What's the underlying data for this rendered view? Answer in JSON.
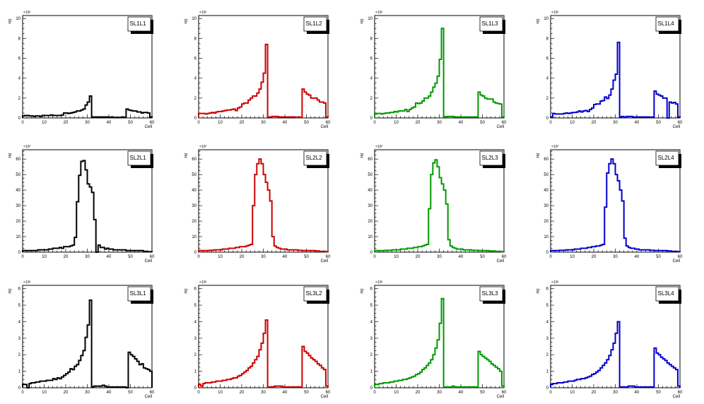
{
  "canvas": {
    "background": "#ffffff"
  },
  "chart_data": [
    {
      "type": "bar",
      "style": "step-histogram",
      "title": "SL1L1",
      "xlabel": "Cell",
      "ylabel": "Hz",
      "y_multiplier": "×10³",
      "color": "#000000",
      "xlim": [
        0,
        60
      ],
      "ylim": [
        0,
        10.3
      ],
      "x_ticks": [
        "0",
        "10",
        "20",
        "30",
        "40",
        "50",
        "60"
      ],
      "y_ticks": [
        "0",
        "2",
        "4",
        "6",
        "8",
        "10"
      ],
      "values": [
        0.2,
        0.25,
        0.25,
        0.2,
        0.2,
        0.15,
        0.2,
        0.2,
        0.15,
        0.25,
        0.25,
        0.25,
        0.25,
        0.3,
        0.25,
        0.25,
        0.25,
        0.25,
        0.3,
        0.5,
        0.5,
        0.45,
        0.5,
        0.55,
        0.6,
        0.7,
        0.7,
        0.8,
        0.9,
        1.3,
        1.6,
        2.2,
        0.1,
        0.1,
        0.1,
        0.1,
        0.1,
        0.1,
        0.1,
        0.1,
        0.05,
        0.1,
        0.05,
        0.05,
        0.05,
        0.05,
        0.1,
        0.05,
        0.9,
        0.8,
        0.75,
        0.7,
        0.7,
        0.6,
        0.6,
        0.5,
        0.55,
        0.55,
        0.5,
        0.1
      ]
    },
    {
      "type": "bar",
      "style": "step-histogram",
      "title": "SL1L2",
      "xlabel": "Cell",
      "ylabel": "Hz",
      "y_multiplier": "×10³",
      "color": "#cc0000",
      "xlim": [
        0,
        60
      ],
      "ylim": [
        0,
        10.3
      ],
      "x_ticks": [
        "0",
        "10",
        "20",
        "30",
        "40",
        "50",
        "60"
      ],
      "y_ticks": [
        "0",
        "2",
        "4",
        "6",
        "8",
        "10"
      ],
      "values": [
        0.45,
        0.45,
        0.45,
        0.4,
        0.45,
        0.5,
        0.55,
        0.5,
        0.6,
        0.65,
        0.65,
        0.7,
        0.75,
        0.8,
        0.8,
        0.85,
        0.9,
        0.75,
        1.0,
        1.1,
        1.4,
        1.5,
        1.5,
        1.8,
        2.0,
        2.2,
        2.2,
        2.5,
        2.9,
        3.6,
        4.5,
        7.4,
        0.1,
        0.1,
        0.15,
        0.15,
        0.15,
        0.1,
        0.1,
        0.1,
        0.1,
        0.1,
        0.1,
        0.1,
        0.1,
        0.05,
        0.1,
        0.05,
        2.9,
        2.6,
        2.4,
        2.3,
        2.0,
        2.0,
        2.0,
        1.8,
        1.6,
        1.6,
        1.5,
        0.1
      ]
    },
    {
      "type": "bar",
      "style": "step-histogram",
      "title": "SL1L3",
      "xlabel": "Cell",
      "ylabel": "Hz",
      "y_multiplier": "×10³",
      "color": "#009900",
      "xlim": [
        0,
        60
      ],
      "ylim": [
        0,
        10.3
      ],
      "x_ticks": [
        "0",
        "10",
        "20",
        "30",
        "40",
        "50",
        "60"
      ],
      "y_ticks": [
        "0",
        "2",
        "4",
        "6",
        "8",
        "10"
      ],
      "values": [
        0.4,
        0.45,
        0.45,
        0.4,
        0.45,
        0.5,
        0.5,
        0.55,
        0.55,
        0.65,
        0.6,
        0.7,
        0.7,
        0.7,
        0.85,
        0.65,
        0.85,
        1.0,
        1.1,
        1.5,
        1.45,
        1.5,
        1.7,
        2.0,
        2.0,
        2.2,
        2.6,
        3.1,
        3.5,
        4.2,
        5.9,
        9.0,
        0.1,
        0.15,
        0.15,
        0.15,
        0.15,
        0.1,
        0.1,
        0.1,
        0.1,
        0.1,
        0.1,
        0.1,
        0.1,
        0.1,
        0.1,
        0.1,
        2.6,
        2.3,
        2.2,
        2.0,
        1.9,
        1.9,
        1.9,
        1.6,
        1.5,
        1.45,
        1.4,
        0.1
      ]
    },
    {
      "type": "bar",
      "style": "step-histogram",
      "title": "SL1L4",
      "xlabel": "Cell",
      "ylabel": "Hz",
      "y_multiplier": "×10³",
      "color": "#0000cc",
      "xlim": [
        0,
        60
      ],
      "ylim": [
        0,
        10.3
      ],
      "x_ticks": [
        "0",
        "10",
        "20",
        "30",
        "40",
        "50",
        "60"
      ],
      "y_ticks": [
        "0",
        "2",
        "4",
        "6",
        "8",
        "10"
      ],
      "values": [
        0.1,
        0.45,
        0.4,
        0.4,
        0.4,
        0.4,
        0.45,
        0.5,
        0.45,
        0.5,
        0.55,
        0.55,
        0.6,
        0.7,
        0.6,
        0.7,
        0.75,
        0.65,
        0.85,
        1.0,
        1.35,
        1.4,
        1.4,
        1.7,
        1.75,
        2.1,
        1.95,
        2.3,
        2.9,
        3.8,
        4.4,
        7.6,
        0.1,
        0.15,
        0.05,
        0.15,
        0.15,
        0.15,
        0.1,
        0.1,
        0.1,
        0.1,
        0.1,
        0.1,
        0.1,
        0.1,
        0.05,
        0.1,
        2.7,
        2.4,
        2.3,
        2.2,
        2.0,
        2.0,
        0,
        1.6,
        1.5,
        1.55,
        1.4,
        0.1
      ]
    },
    {
      "type": "bar",
      "style": "step-histogram",
      "title": "SL2L1",
      "xlabel": "Cell",
      "ylabel": "Hz",
      "y_multiplier": "×10³",
      "color": "#000000",
      "xlim": [
        0,
        60
      ],
      "ylim": [
        0,
        66
      ],
      "x_ticks": [
        "0",
        "10",
        "20",
        "30",
        "40",
        "50",
        "60"
      ],
      "y_ticks": [
        "0",
        "10",
        "20",
        "30",
        "40",
        "50",
        "60"
      ],
      "values": [
        1,
        1,
        1,
        1,
        1,
        1,
        1,
        1.5,
        1.5,
        1.5,
        1.5,
        1.5,
        2,
        2,
        2.5,
        2.5,
        2.5,
        3,
        2.5,
        3.5,
        3.5,
        3.5,
        4,
        4.5,
        9.5,
        32.5,
        49.5,
        58.5,
        59,
        53,
        44,
        42,
        38.5,
        21,
        0,
        4.5,
        3,
        3,
        2,
        2.5,
        2,
        2,
        1.5,
        1.5,
        1.5,
        1.5,
        1.5,
        1.5,
        1,
        1,
        1,
        1,
        1,
        1,
        1,
        1,
        0.5,
        0.5,
        0.3,
        0.3
      ]
    },
    {
      "type": "bar",
      "style": "step-histogram",
      "title": "SL2L2",
      "xlabel": "Cell",
      "ylabel": "Hz",
      "y_multiplier": "×10³",
      "color": "#cc0000",
      "xlim": [
        0,
        60
      ],
      "ylim": [
        0,
        66
      ],
      "x_ticks": [
        "0",
        "10",
        "20",
        "30",
        "40",
        "50",
        "60"
      ],
      "y_ticks": [
        "0",
        "10",
        "20",
        "30",
        "40",
        "50",
        "60"
      ],
      "values": [
        1,
        1,
        1,
        1,
        1,
        1.2,
        1.2,
        1.5,
        1.5,
        1.5,
        1.5,
        2,
        2,
        2,
        2.5,
        2.5,
        2.5,
        3,
        3,
        3.5,
        3.5,
        3.5,
        4,
        4.5,
        5,
        30,
        50,
        57,
        60,
        57,
        50,
        45,
        40,
        33,
        10,
        4,
        3,
        2.5,
        2,
        2,
        2,
        1.5,
        1.5,
        1.5,
        1.5,
        1.5,
        1.2,
        1.2,
        1,
        1,
        1,
        1,
        1,
        1,
        0.8,
        0.8,
        0.5,
        0.5,
        0.5,
        0.3
      ]
    },
    {
      "type": "bar",
      "style": "step-histogram",
      "title": "SL2L3",
      "xlabel": "Cell",
      "ylabel": "Hz",
      "y_multiplier": "×10³",
      "color": "#009900",
      "xlim": [
        0,
        60
      ],
      "ylim": [
        0,
        66
      ],
      "x_ticks": [
        "0",
        "10",
        "20",
        "30",
        "40",
        "50",
        "60"
      ],
      "y_ticks": [
        "0",
        "10",
        "20",
        "30",
        "40",
        "50",
        "60"
      ],
      "values": [
        1,
        1,
        1,
        1,
        1,
        1.2,
        1.2,
        1.2,
        1.5,
        1.5,
        1.5,
        1.5,
        2,
        2,
        2,
        2.5,
        2.5,
        2.5,
        3,
        3,
        3.5,
        3.5,
        4,
        4.5,
        5,
        28,
        50,
        57.5,
        59.5,
        55,
        48,
        44,
        40,
        31,
        8,
        4,
        3,
        2.5,
        2,
        2,
        2,
        1.5,
        1.5,
        1.5,
        1.5,
        1.2,
        1.2,
        1.2,
        1,
        1,
        1,
        1,
        1,
        0.8,
        0.8,
        0.8,
        0.5,
        0.5,
        0.5,
        0.3
      ]
    },
    {
      "type": "bar",
      "style": "step-histogram",
      "title": "SL2L4",
      "xlabel": "Cell",
      "ylabel": "Hz",
      "y_multiplier": "×10³",
      "color": "#0000cc",
      "xlim": [
        0,
        60
      ],
      "ylim": [
        0,
        66
      ],
      "x_ticks": [
        "0",
        "10",
        "20",
        "30",
        "40",
        "50",
        "60"
      ],
      "y_ticks": [
        "0",
        "10",
        "20",
        "30",
        "40",
        "50",
        "60"
      ],
      "values": [
        1,
        1,
        1,
        1,
        1.2,
        1.2,
        1.2,
        1.5,
        1.5,
        1.5,
        1.5,
        2,
        2,
        2,
        2.5,
        2.5,
        2.5,
        3,
        3,
        3.5,
        3.5,
        4,
        4,
        4.5,
        5,
        29,
        51,
        57,
        60,
        57,
        50,
        46,
        40,
        33,
        9,
        4,
        3,
        2.5,
        2.5,
        2,
        2,
        1.5,
        1.5,
        1.5,
        1.5,
        1.5,
        1.2,
        1.2,
        1,
        1,
        1,
        1,
        1,
        1,
        0.8,
        0.8,
        0.5,
        0.5,
        0.5,
        0.3
      ]
    },
    {
      "type": "bar",
      "style": "step-histogram",
      "title": "SL3L1",
      "xlabel": "Cell",
      "ylabel": "Hz",
      "y_multiplier": "×10³",
      "color": "#000000",
      "xlim": [
        0,
        60
      ],
      "ylim": [
        0,
        6.2
      ],
      "x_ticks": [
        "0",
        "10",
        "20",
        "30",
        "40",
        "50",
        "60"
      ],
      "y_ticks": [
        "0",
        "1",
        "2",
        "3",
        "4",
        "5",
        "6"
      ],
      "values": [
        0.2,
        0.2,
        0,
        0.25,
        0.3,
        0.3,
        0.35,
        0.35,
        0.4,
        0.4,
        0.4,
        0.45,
        0.45,
        0.45,
        0.55,
        0.5,
        0.6,
        0.55,
        0.65,
        0.75,
        0.85,
        0.95,
        1.15,
        1.1,
        1.3,
        1.4,
        1.65,
        1.95,
        2.25,
        3.05,
        3.8,
        5.3,
        0.05,
        0.1,
        0.1,
        0.1,
        0.1,
        0.15,
        0.1,
        0.05,
        0.05,
        0.05,
        0.05,
        0.05,
        0.05,
        0.05,
        0.05,
        0.05,
        0,
        2.15,
        2.0,
        1.9,
        1.75,
        1.6,
        1.4,
        1.45,
        1.2,
        1.15,
        1.1,
        1.0
      ]
    },
    {
      "type": "bar",
      "style": "step-histogram",
      "title": "SL3L2",
      "xlabel": "Cell",
      "ylabel": "Hz",
      "y_multiplier": "×10³",
      "color": "#cc0000",
      "xlim": [
        0,
        60
      ],
      "ylim": [
        0,
        6.2
      ],
      "x_ticks": [
        "0",
        "10",
        "20",
        "30",
        "40",
        "50",
        "60"
      ],
      "y_ticks": [
        "0",
        "1",
        "2",
        "3",
        "4",
        "5",
        "6"
      ],
      "values": [
        0.2,
        0.1,
        0.25,
        0.3,
        0.3,
        0.3,
        0.35,
        0.35,
        0.4,
        0.4,
        0.4,
        0.45,
        0.45,
        0.5,
        0.5,
        0.55,
        0.6,
        0.6,
        0.7,
        0.75,
        0.85,
        0.95,
        1.05,
        1.2,
        1.3,
        1.5,
        1.7,
        1.9,
        2.3,
        2.7,
        3.3,
        4.1,
        0.05,
        0.05,
        0.05,
        0.1,
        0.1,
        0.1,
        0.1,
        0.05,
        0.05,
        0.05,
        0.05,
        0.05,
        0.05,
        0.05,
        0.05,
        0.05,
        2.5,
        2.2,
        2.1,
        1.95,
        1.8,
        1.7,
        1.6,
        1.45,
        1.35,
        1.2,
        1.1,
        0.1
      ]
    },
    {
      "type": "bar",
      "style": "step-histogram",
      "title": "SL3L3",
      "xlabel": "Cell",
      "ylabel": "Hz",
      "y_multiplier": "×10³",
      "color": "#009900",
      "xlim": [
        0,
        60
      ],
      "ylim": [
        0,
        6.2
      ],
      "x_ticks": [
        "0",
        "10",
        "20",
        "30",
        "40",
        "50",
        "60"
      ],
      "y_ticks": [
        "0",
        "1",
        "2",
        "3",
        "4",
        "5",
        "6"
      ],
      "values": [
        0.2,
        0.2,
        0.25,
        0.25,
        0.3,
        0.3,
        0.3,
        0.35,
        0.35,
        0.4,
        0.4,
        0.45,
        0.45,
        0.5,
        0.5,
        0.55,
        0.6,
        0.65,
        0.7,
        0.8,
        0.85,
        0.95,
        1.1,
        1.2,
        1.35,
        1.5,
        1.7,
        2.0,
        2.4,
        2.9,
        3.9,
        5.4,
        0.05,
        0.05,
        0.05,
        0.05,
        0.1,
        0.05,
        0.05,
        0.05,
        0.05,
        0.05,
        0.05,
        0.05,
        0.05,
        0.05,
        0.05,
        0.05,
        2.2,
        2.0,
        1.9,
        1.8,
        1.7,
        1.6,
        1.45,
        1.35,
        1.25,
        1.15,
        1.0,
        0.1
      ]
    },
    {
      "type": "bar",
      "style": "step-histogram",
      "title": "SL3L4",
      "xlabel": "Cell",
      "ylabel": "Hz",
      "y_multiplier": "×10³",
      "color": "#0000cc",
      "xlim": [
        0,
        60
      ],
      "ylim": [
        0,
        6.2
      ],
      "x_ticks": [
        "0",
        "10",
        "20",
        "30",
        "40",
        "50",
        "60"
      ],
      "y_ticks": [
        "0",
        "1",
        "2",
        "3",
        "4",
        "5",
        "6"
      ],
      "values": [
        0.2,
        0.25,
        0.25,
        0.3,
        0.3,
        0.3,
        0.35,
        0.35,
        0.4,
        0.4,
        0.4,
        0.45,
        0.5,
        0.5,
        0.55,
        0.55,
        0.6,
        0.65,
        0.7,
        0.8,
        0.85,
        0.95,
        1.05,
        1.2,
        1.35,
        1.5,
        1.7,
        1.95,
        2.3,
        2.7,
        3.3,
        4.0,
        0.05,
        0.05,
        0.05,
        0.05,
        0.1,
        0.1,
        0.1,
        0.05,
        0.05,
        0.05,
        0.05,
        0.05,
        0.05,
        0.05,
        0.05,
        0.05,
        2.4,
        2.1,
        2.0,
        1.85,
        1.75,
        1.65,
        1.5,
        1.4,
        1.3,
        1.2,
        1.1,
        0.1
      ]
    }
  ]
}
